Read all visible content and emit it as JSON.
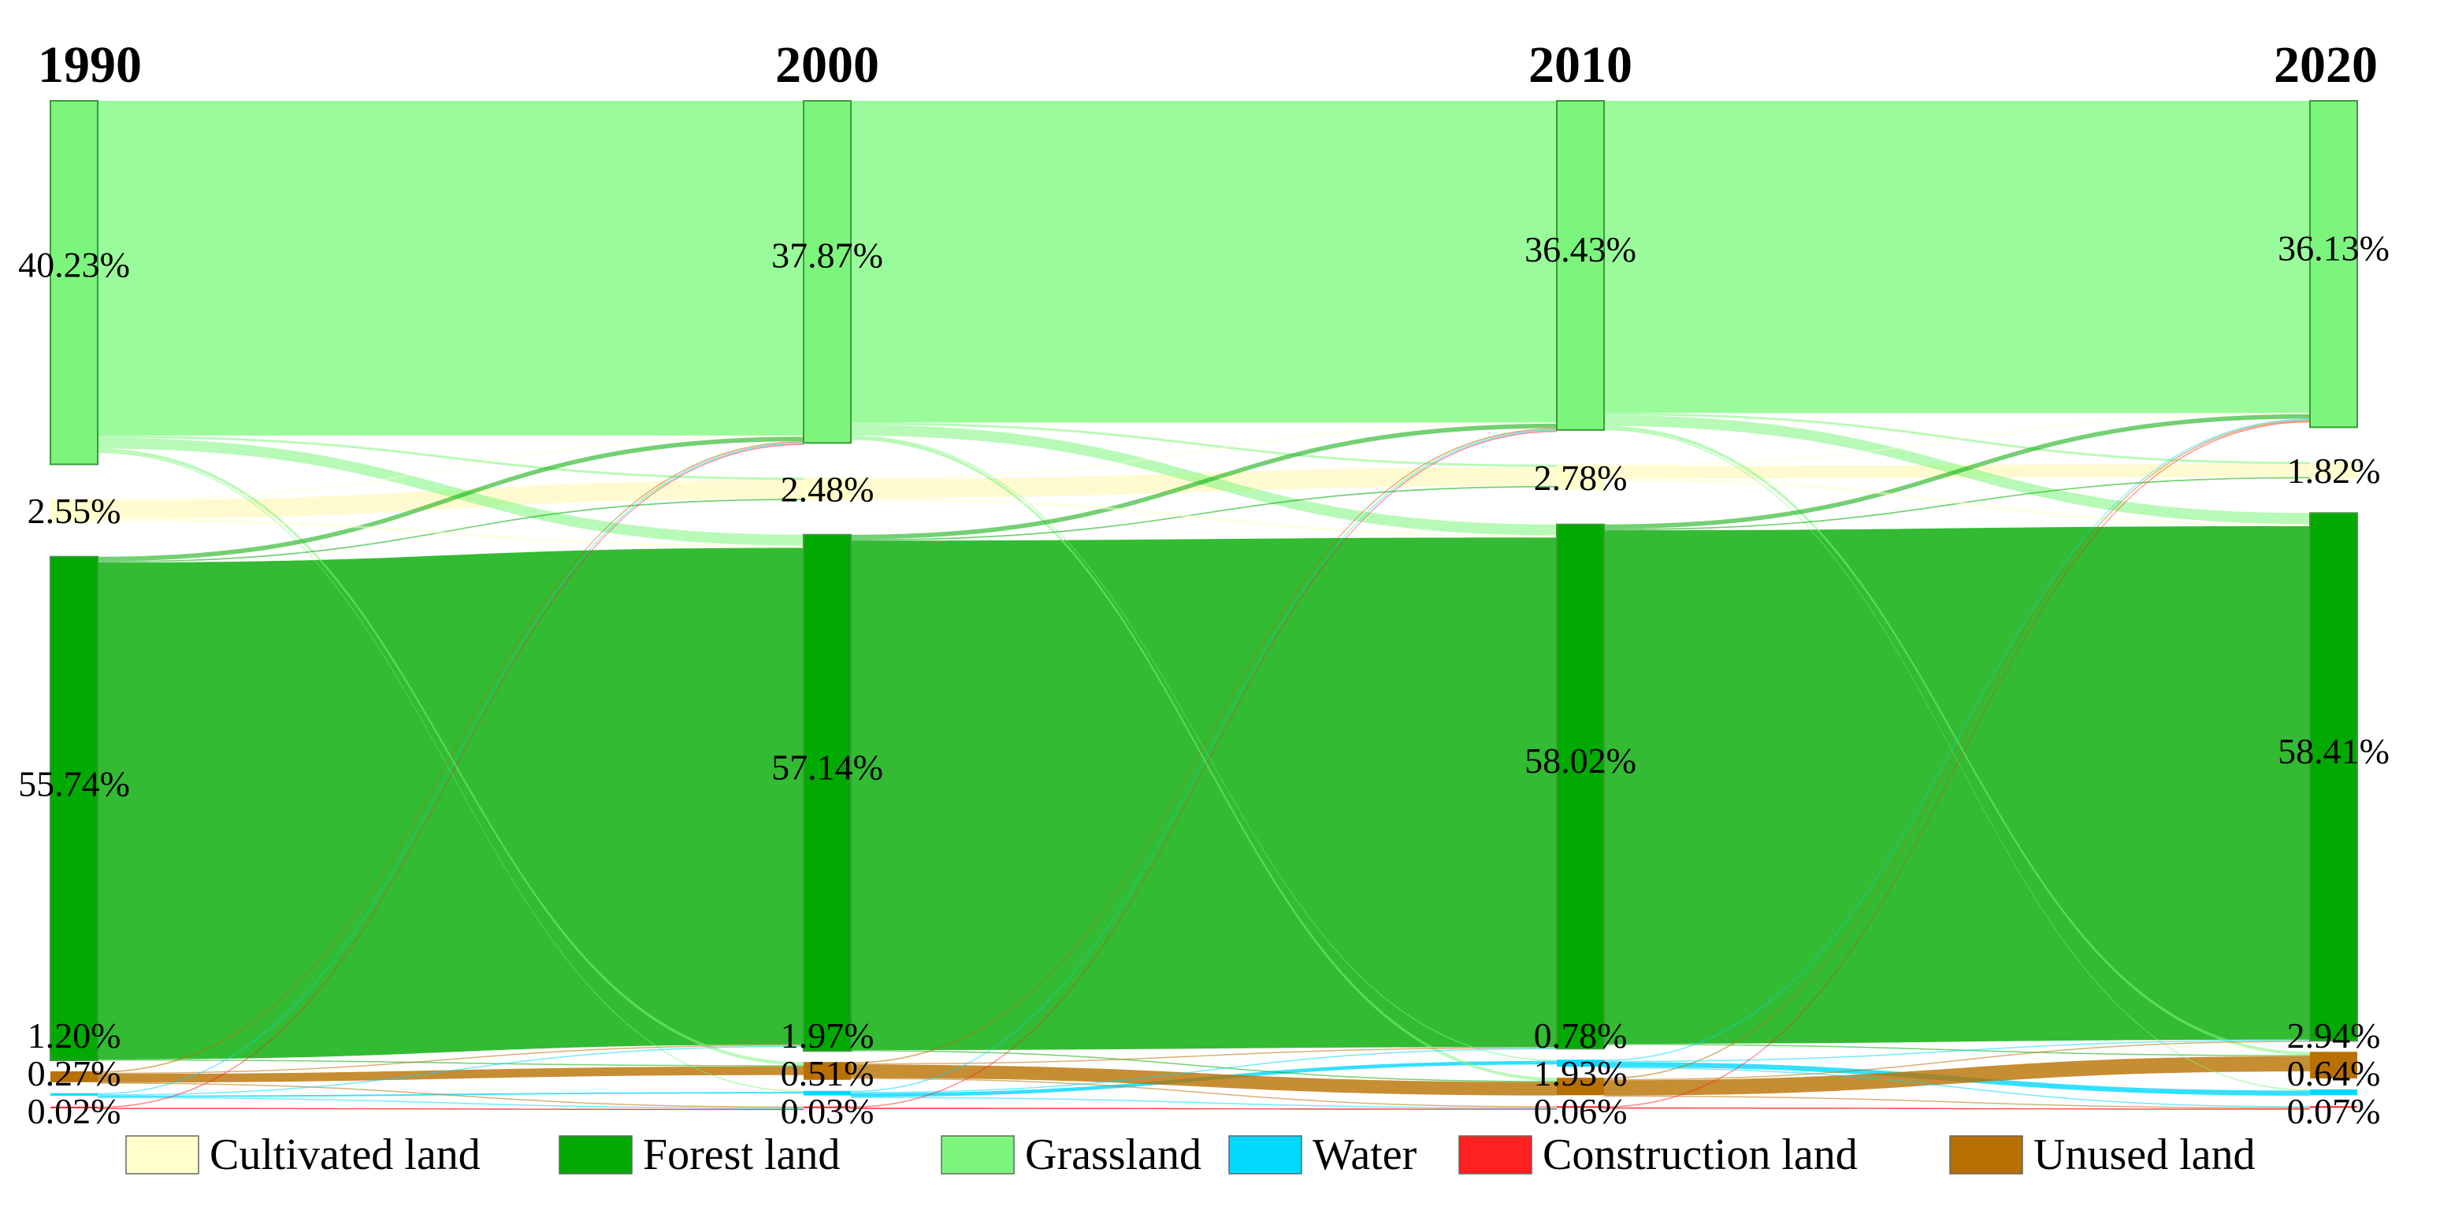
{
  "chart_data": {
    "type": "sankey",
    "title": "",
    "years": [
      "1990",
      "2000",
      "2010",
      "2020"
    ],
    "categories": [
      "Cultivated land",
      "Forest land",
      "Grassland",
      "Water",
      "Construction land",
      "Unused land"
    ],
    "colors": {
      "Cultivated land": "#FFFFCC",
      "Forest land": "#00AA00",
      "Grassland": "#7CF57C",
      "Water": "#00D8FF",
      "Construction land": "#FF2020",
      "Unused land": "#B87000"
    },
    "percentages": {
      "1990": {
        "Grassland": "40.23%",
        "Cultivated land": "2.55%",
        "Forest land": "55.74%",
        "Unused land": "1.20%",
        "Water": "0.27%",
        "Construction land": "0.02%"
      },
      "2000": {
        "Grassland": "37.87%",
        "Cultivated land": "2.48%",
        "Forest land": "57.14%",
        "Unused land": "1.97%",
        "Water": "0.51%",
        "Construction land": "0.03%"
      },
      "2010": {
        "Grassland": "36.43%",
        "Cultivated land": "2.78%",
        "Forest land": "58.02%",
        "Water": "0.78%",
        "Unused land": "1.93%",
        "Construction land": "0.06%"
      },
      "2020": {
        "Grassland": "36.13%",
        "Cultivated land": "1.82%",
        "Forest land": "58.41%",
        "Unused land": "2.94%",
        "Water": "0.64%",
        "Construction land": "0.07%"
      }
    },
    "legend": [
      "Cultivated land",
      "Forest land",
      "Grassland",
      "Water",
      "Construction land",
      "Unused land"
    ]
  }
}
